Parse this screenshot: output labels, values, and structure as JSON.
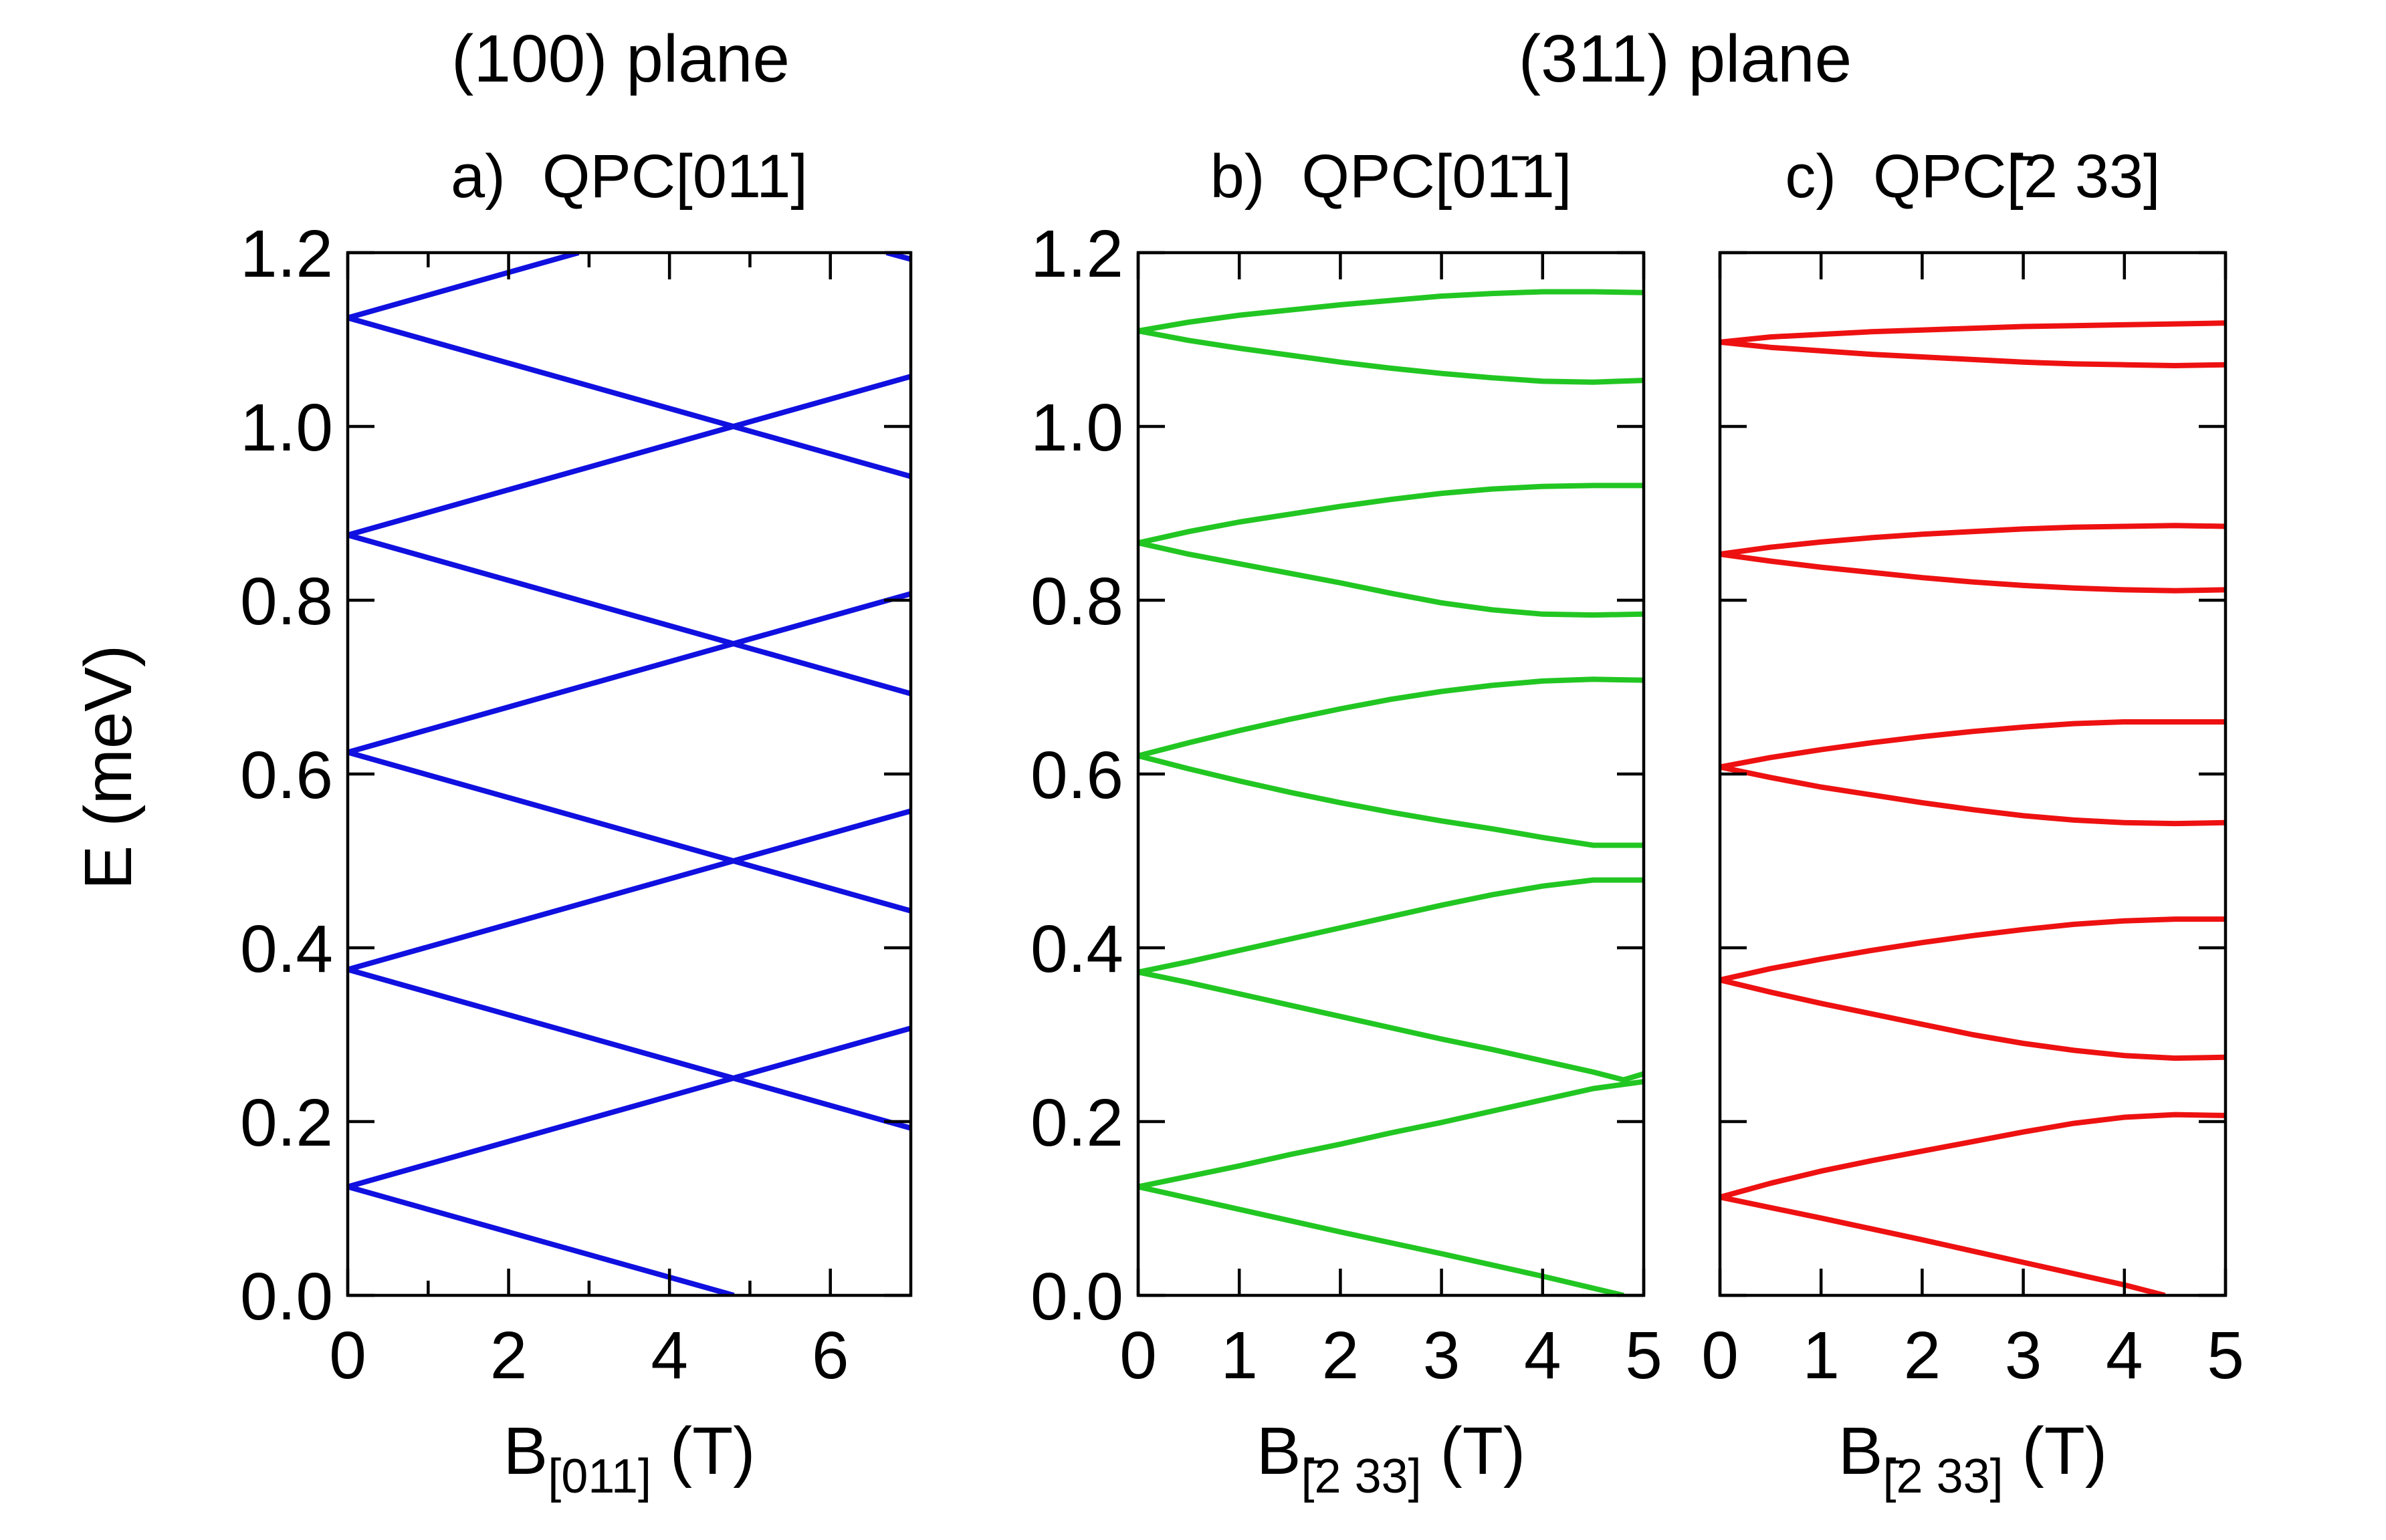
{
  "figure": {
    "plane_titles": [
      {
        "label": "(100) plane"
      },
      {
        "label": "(311) plane"
      }
    ],
    "ylabel": "E (meV)"
  },
  "chart_data": [
    {
      "type": "line",
      "panel": "a)",
      "title": "QPC[011]",
      "xlabel_main": "B",
      "xlabel_sub": "[011]",
      "xlabel_unit": " (T)",
      "xlim": [
        0,
        7
      ],
      "ylim": [
        0,
        1.2
      ],
      "x_ticks": [
        "0",
        "2",
        "4",
        "6"
      ],
      "y_ticks": [
        "0.0",
        "0.2",
        "0.4",
        "0.6",
        "0.8",
        "1.0",
        "1.2"
      ],
      "color": "#1010e0",
      "series": [
        {
          "name": "0.125 up",
          "x": [
            0,
            7
          ],
          "y": [
            0.125,
            0.3075
          ]
        },
        {
          "name": "0.125 down",
          "x": [
            0,
            4.8
          ],
          "y": [
            0.125,
            0.0
          ]
        },
        {
          "name": "0.375 up",
          "x": [
            0,
            7
          ],
          "y": [
            0.375,
            0.5575
          ]
        },
        {
          "name": "0.375 down",
          "x": [
            0,
            7
          ],
          "y": [
            0.375,
            0.1925
          ]
        },
        {
          "name": "0.625 up",
          "x": [
            0,
            7
          ],
          "y": [
            0.625,
            0.8075
          ]
        },
        {
          "name": "0.625 down",
          "x": [
            0,
            7
          ],
          "y": [
            0.625,
            0.4425
          ]
        },
        {
          "name": "0.875 up",
          "x": [
            0,
            7
          ],
          "y": [
            0.875,
            1.0575
          ]
        },
        {
          "name": "0.875 down",
          "x": [
            0,
            7
          ],
          "y": [
            0.875,
            0.6925
          ]
        },
        {
          "name": "1.125 up",
          "x": [
            0,
            2.87
          ],
          "y": [
            1.125,
            1.2
          ]
        },
        {
          "name": "1.125 down",
          "x": [
            0,
            7
          ],
          "y": [
            1.125,
            0.9425
          ]
        },
        {
          "name": "1.375 down",
          "x": [
            6.7,
            7
          ],
          "y": [
            1.2,
            1.1925
          ]
        }
      ]
    },
    {
      "type": "line",
      "panel": "b)",
      "title": "QPC[01̄1]",
      "xlabel_main": "B",
      "xlabel_sub": "[̄2 33]",
      "xlabel_unit": " (T)",
      "xlim": [
        0,
        5
      ],
      "ylim": [
        0,
        1.2
      ],
      "x_ticks": [
        "0",
        "1",
        "2",
        "3",
        "4",
        "5"
      ],
      "y_ticks": [
        "0.0",
        "0.2",
        "0.4",
        "0.6",
        "0.8",
        "1.0",
        "1.2"
      ],
      "color": "#22c622",
      "series": [
        {
          "name": "1 up",
          "x": [
            0,
            0.5,
            1,
            1.5,
            2,
            2.5,
            3,
            3.5,
            4,
            4.5,
            5
          ],
          "y": [
            0.125,
            0.137,
            0.149,
            0.162,
            0.174,
            0.187,
            0.199,
            0.212,
            0.225,
            0.238,
            0.246
          ]
        },
        {
          "name": "1 down",
          "x": [
            0,
            1,
            2,
            3,
            4,
            4.8
          ],
          "y": [
            0.125,
            0.099,
            0.073,
            0.048,
            0.022,
            0.0
          ]
        },
        {
          "name": "2 up",
          "x": [
            0,
            0.5,
            1,
            1.5,
            2,
            2.5,
            3,
            3.5,
            4,
            4.5,
            5
          ],
          "y": [
            0.372,
            0.384,
            0.397,
            0.41,
            0.423,
            0.436,
            0.449,
            0.461,
            0.471,
            0.478,
            0.478
          ]
        },
        {
          "name": "2 down",
          "x": [
            0,
            0.5,
            1,
            1.5,
            2,
            2.5,
            3,
            3.5,
            4,
            4.5,
            4.8,
            5
          ],
          "y": [
            0.372,
            0.36,
            0.347,
            0.334,
            0.321,
            0.308,
            0.295,
            0.283,
            0.27,
            0.257,
            0.248,
            0.255
          ]
        },
        {
          "name": "3 up",
          "x": [
            0,
            0.5,
            1,
            1.5,
            2,
            2.5,
            3,
            3.5,
            4,
            4.5,
            5
          ],
          "y": [
            0.621,
            0.636,
            0.65,
            0.663,
            0.675,
            0.686,
            0.695,
            0.702,
            0.707,
            0.709,
            0.708
          ]
        },
        {
          "name": "3 down",
          "x": [
            0,
            0.5,
            1,
            1.5,
            2,
            2.5,
            3,
            3.5,
            4,
            4.5,
            5
          ],
          "y": [
            0.621,
            0.606,
            0.592,
            0.579,
            0.567,
            0.556,
            0.546,
            0.537,
            0.527,
            0.518,
            0.518
          ]
        },
        {
          "name": "4 up",
          "x": [
            0,
            0.5,
            1,
            1.5,
            2,
            2.5,
            3,
            3.5,
            4,
            4.5,
            5
          ],
          "y": [
            0.866,
            0.879,
            0.89,
            0.899,
            0.908,
            0.916,
            0.923,
            0.928,
            0.931,
            0.932,
            0.932
          ]
        },
        {
          "name": "4 down",
          "x": [
            0,
            0.5,
            1,
            1.5,
            2,
            2.5,
            3,
            3.5,
            4,
            4.5,
            5
          ],
          "y": [
            0.866,
            0.853,
            0.842,
            0.831,
            0.82,
            0.808,
            0.797,
            0.789,
            0.784,
            0.783,
            0.784
          ]
        },
        {
          "name": "5 up",
          "x": [
            0,
            0.5,
            1,
            1.5,
            2,
            2.5,
            3,
            3.5,
            4,
            4.5,
            5
          ],
          "y": [
            1.11,
            1.12,
            1.128,
            1.134,
            1.14,
            1.145,
            1.15,
            1.153,
            1.155,
            1.155,
            1.154
          ]
        },
        {
          "name": "5 down",
          "x": [
            0,
            0.5,
            1,
            1.5,
            2,
            2.5,
            3,
            3.5,
            4,
            4.5,
            5
          ],
          "y": [
            1.11,
            1.099,
            1.09,
            1.082,
            1.074,
            1.067,
            1.061,
            1.056,
            1.052,
            1.051,
            1.053
          ]
        }
      ]
    },
    {
      "type": "line",
      "panel": "c)",
      "title": "QPC[̄2 33]",
      "xlabel_main": "B",
      "xlabel_sub": "[̄2 33]",
      "xlabel_unit": " (T)",
      "xlim": [
        0,
        5
      ],
      "ylim": [
        0,
        1.2
      ],
      "x_ticks": [
        "0",
        "1",
        "2",
        "3",
        "4",
        "5"
      ],
      "y_ticks": [
        "",
        "",
        "",
        "",
        "",
        "",
        ""
      ],
      "color": "#ee1111",
      "series": [
        {
          "name": "1 up",
          "x": [
            0,
            0.5,
            1,
            1.5,
            2,
            2.5,
            3,
            3.5,
            4,
            4.5,
            5
          ],
          "y": [
            0.113,
            0.129,
            0.143,
            0.155,
            0.166,
            0.177,
            0.188,
            0.198,
            0.205,
            0.208,
            0.207
          ]
        },
        {
          "name": "1 down",
          "x": [
            0,
            1,
            2,
            3,
            4,
            4.4
          ],
          "y": [
            0.113,
            0.089,
            0.064,
            0.038,
            0.012,
            0.0
          ]
        },
        {
          "name": "2 up",
          "x": [
            0,
            0.5,
            1,
            1.5,
            2,
            2.5,
            3,
            3.5,
            4,
            4.5,
            5
          ],
          "y": [
            0.363,
            0.376,
            0.387,
            0.397,
            0.406,
            0.414,
            0.421,
            0.427,
            0.431,
            0.433,
            0.433
          ]
        },
        {
          "name": "2 down",
          "x": [
            0,
            0.5,
            1,
            1.5,
            2,
            2.5,
            3,
            3.5,
            4,
            4.5,
            5
          ],
          "y": [
            0.363,
            0.349,
            0.336,
            0.324,
            0.312,
            0.3,
            0.29,
            0.282,
            0.276,
            0.273,
            0.274
          ]
        },
        {
          "name": "3 up",
          "x": [
            0,
            0.5,
            1,
            1.5,
            2,
            2.5,
            3,
            3.5,
            4,
            4.5,
            5
          ],
          "y": [
            0.608,
            0.619,
            0.628,
            0.636,
            0.643,
            0.649,
            0.654,
            0.658,
            0.66,
            0.66,
            0.66
          ]
        },
        {
          "name": "3 down",
          "x": [
            0,
            0.5,
            1,
            1.5,
            2,
            2.5,
            3,
            3.5,
            4,
            4.5,
            5
          ],
          "y": [
            0.608,
            0.596,
            0.585,
            0.576,
            0.567,
            0.559,
            0.552,
            0.547,
            0.544,
            0.543,
            0.544
          ]
        },
        {
          "name": "4 up",
          "x": [
            0,
            0.5,
            1,
            1.5,
            2,
            2.5,
            3,
            3.5,
            4,
            4.5,
            5
          ],
          "y": [
            0.853,
            0.861,
            0.867,
            0.872,
            0.876,
            0.879,
            0.882,
            0.884,
            0.885,
            0.886,
            0.885
          ]
        },
        {
          "name": "4 down",
          "x": [
            0,
            0.5,
            1,
            1.5,
            2,
            2.5,
            3,
            3.5,
            4,
            4.5,
            5
          ],
          "y": [
            0.853,
            0.845,
            0.838,
            0.832,
            0.826,
            0.821,
            0.817,
            0.814,
            0.812,
            0.811,
            0.812
          ]
        },
        {
          "name": "5 up",
          "x": [
            0,
            0.5,
            1,
            1.5,
            2,
            2.5,
            3,
            3.5,
            4,
            4.5,
            5
          ],
          "y": [
            1.097,
            1.103,
            1.106,
            1.109,
            1.111,
            1.113,
            1.115,
            1.116,
            1.117,
            1.118,
            1.119
          ]
        },
        {
          "name": "5 down",
          "x": [
            0,
            0.5,
            1,
            1.5,
            2,
            2.5,
            3,
            3.5,
            4,
            4.5,
            5
          ],
          "y": [
            1.097,
            1.091,
            1.087,
            1.083,
            1.08,
            1.077,
            1.074,
            1.072,
            1.071,
            1.07,
            1.071
          ]
        }
      ]
    }
  ]
}
